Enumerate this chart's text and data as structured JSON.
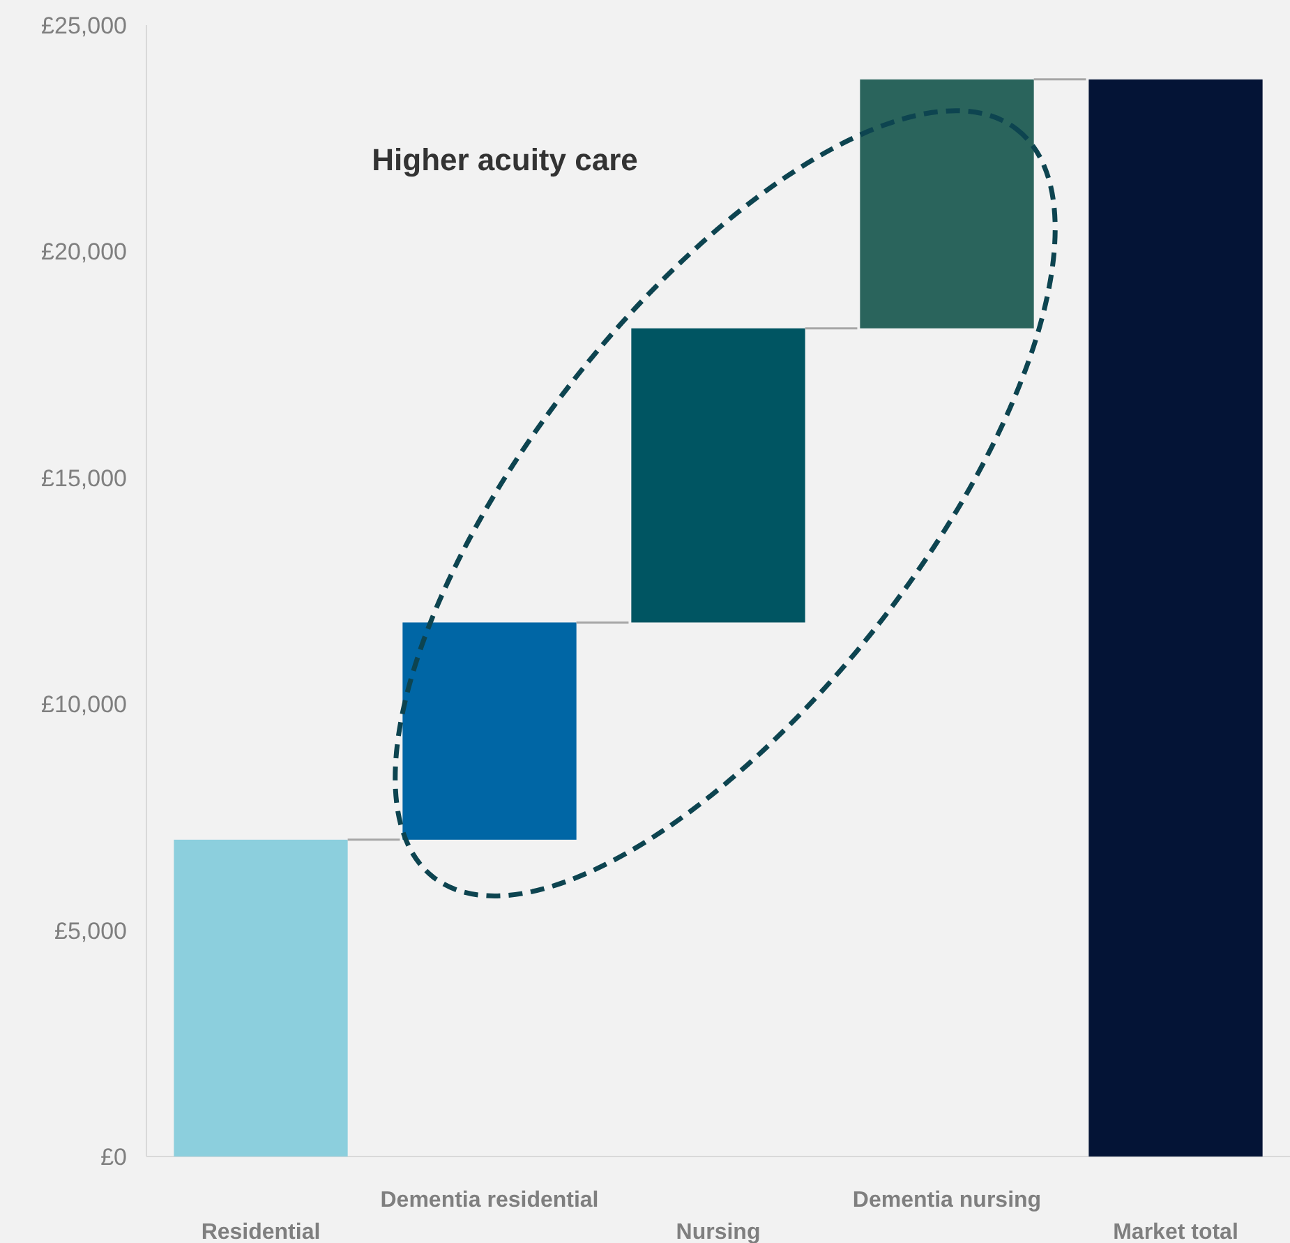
{
  "chart_data": {
    "type": "bar",
    "categories": [
      "Residential",
      "Dementia residential",
      "Nursing",
      "Dementia nursing",
      "Market total"
    ],
    "values": [
      7000,
      4800,
      6500,
      5500,
      23800
    ],
    "base": [
      0,
      7000,
      11800,
      18300,
      0
    ],
    "colors": [
      "#8ccfdd",
      "#0066a5",
      "#005562",
      "#2a645c",
      "#041436"
    ],
    "ylim": [
      0,
      25000
    ],
    "yticks": [
      {
        "value": 0,
        "label": "£0"
      },
      {
        "value": 5000,
        "label": "£5,000"
      },
      {
        "value": 10000,
        "label": "£10,000"
      },
      {
        "value": 15000,
        "label": "£15,000"
      },
      {
        "value": 20000,
        "label": "£20,000"
      },
      {
        "value": 25000,
        "label": "£25,000"
      }
    ],
    "annotations": [
      "Higher acuity care"
    ],
    "grid": false
  }
}
